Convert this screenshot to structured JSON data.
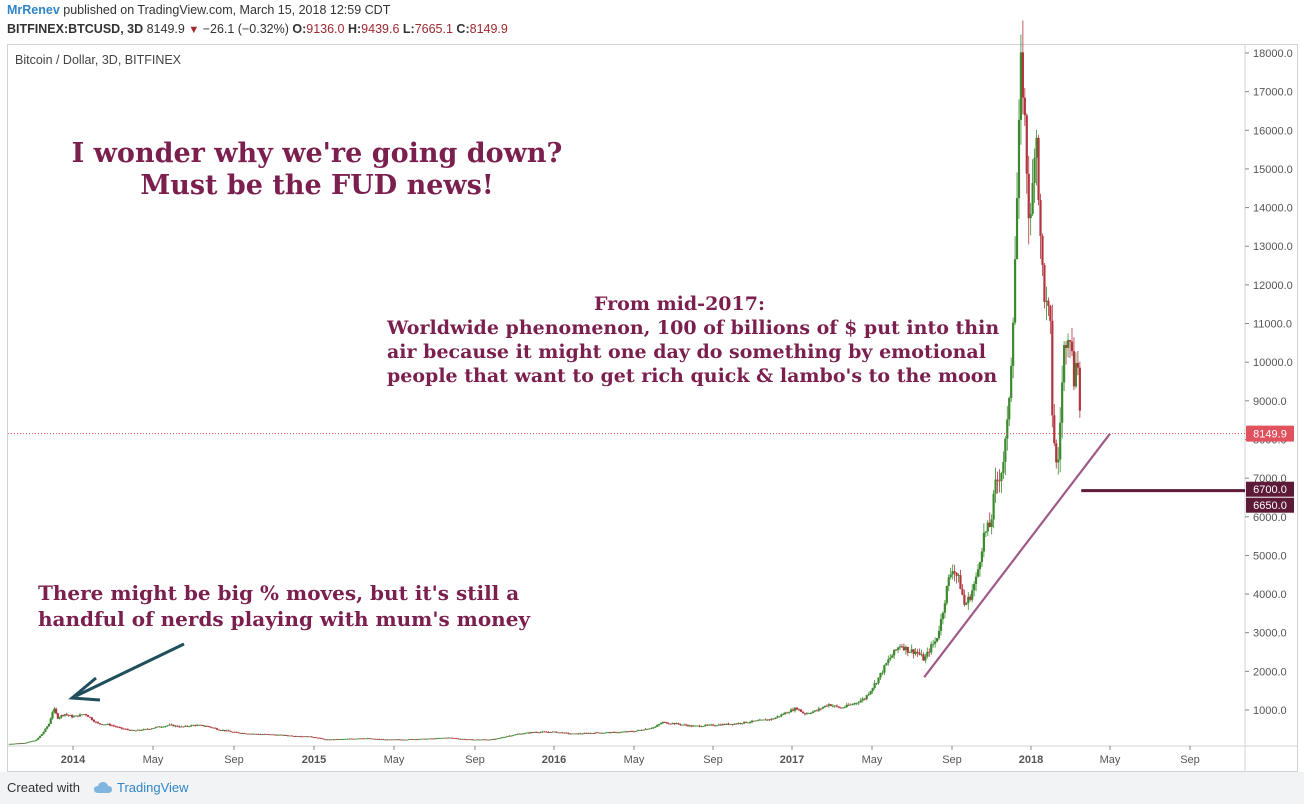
{
  "header": {
    "username": "MrRenev",
    "published_text": "published on TradingView.com, March 15, 2018 12:59 CDT",
    "symbol": "BITFINEX:BTCUSD, 3D",
    "last": "8149.9",
    "change": "−26.1 (−0.32%)",
    "o_label": "O:",
    "o_value": "9136.0",
    "h_label": "H:",
    "h_value": "9439.6",
    "l_label": "L:",
    "l_value": "7665.1",
    "c_label": "C:",
    "c_value": "8149.9"
  },
  "legend": {
    "title": "Bitcoin / Dollar, 3D, BITFINEX"
  },
  "annotations": {
    "top": [
      "I wonder why we're going down?",
      "Must be the FUD news!"
    ],
    "middle": [
      "From mid-2017:",
      "Worldwide phenomenon, 100 of billions of $ put into thin",
      "air because it might one day do something by emotional",
      "people that want to get rich quick & lambo's to the moon"
    ],
    "bottom": [
      "There might be big % moves, but it's still a",
      "handful of nerds playing with mum's money"
    ]
  },
  "price_labels": {
    "last": "8149.9",
    "level_high": "6700.0",
    "level_low": "6650.0"
  },
  "colors": {
    "up": "#3b8a2e",
    "down": "#b3343f",
    "annotation": "#7a1f4e",
    "trendline": "#a05a88",
    "arrow": "#1f4f5c",
    "hline": "#5c1a38",
    "last_price": "#e0525e"
  },
  "footer": {
    "created": "Created with",
    "brand": "TradingView"
  },
  "chart_data": {
    "type": "candlestick",
    "title": "Bitcoin / Dollar, 3D, BITFINEX",
    "y_ticks": [
      1000,
      2000,
      3000,
      4000,
      5000,
      6000,
      7000,
      8000,
      9000,
      10000,
      11000,
      12000,
      13000,
      14000,
      15000,
      16000,
      17000,
      18000
    ],
    "x_ticks": [
      "2014",
      "May",
      "Sep",
      "2015",
      "May",
      "Sep",
      "2016",
      "May",
      "Sep",
      "2017",
      "May",
      "Sep",
      "2018",
      "May",
      "Sep"
    ],
    "x_tick_values": [
      2014.0,
      2014.33,
      2014.667,
      2015.0,
      2015.33,
      2015.667,
      2016.0,
      2016.33,
      2016.667,
      2017.0,
      2017.33,
      2017.667,
      2018.0,
      2018.33,
      2018.667
    ],
    "x_range": [
      2013.7,
      2018.75
    ],
    "ylim": [
      0,
      18400
    ],
    "grid": false,
    "price_series_approx": [
      [
        2013.7,
        120
      ],
      [
        2013.78,
        150
      ],
      [
        2013.83,
        220
      ],
      [
        2013.86,
        400
      ],
      [
        2013.89,
        650
      ],
      [
        2013.91,
        1050
      ],
      [
        2013.93,
        800
      ],
      [
        2013.96,
        900
      ],
      [
        2014.0,
        820
      ],
      [
        2014.05,
        900
      ],
      [
        2014.1,
        650
      ],
      [
        2014.15,
        620
      ],
      [
        2014.2,
        520
      ],
      [
        2014.25,
        460
      ],
      [
        2014.3,
        500
      ],
      [
        2014.35,
        560
      ],
      [
        2014.4,
        610
      ],
      [
        2014.45,
        560
      ],
      [
        2014.5,
        610
      ],
      [
        2014.55,
        590
      ],
      [
        2014.6,
        500
      ],
      [
        2014.67,
        420
      ],
      [
        2014.75,
        380
      ],
      [
        2014.83,
        360
      ],
      [
        2014.92,
        330
      ],
      [
        2015.0,
        300
      ],
      [
        2015.05,
        230
      ],
      [
        2015.1,
        240
      ],
      [
        2015.2,
        270
      ],
      [
        2015.3,
        230
      ],
      [
        2015.4,
        240
      ],
      [
        2015.5,
        260
      ],
      [
        2015.55,
        285
      ],
      [
        2015.65,
        230
      ],
      [
        2015.75,
        240
      ],
      [
        2015.8,
        320
      ],
      [
        2015.85,
        380
      ],
      [
        2015.92,
        430
      ],
      [
        2016.0,
        430
      ],
      [
        2016.08,
        380
      ],
      [
        2016.17,
        410
      ],
      [
        2016.25,
        420
      ],
      [
        2016.33,
        450
      ],
      [
        2016.42,
        560
      ],
      [
        2016.45,
        680
      ],
      [
        2016.5,
        650
      ],
      [
        2016.58,
        580
      ],
      [
        2016.67,
        610
      ],
      [
        2016.75,
        640
      ],
      [
        2016.83,
        700
      ],
      [
        2016.92,
        770
      ],
      [
        2016.98,
        950
      ],
      [
        2017.02,
        1050
      ],
      [
        2017.05,
        900
      ],
      [
        2017.1,
        980
      ],
      [
        2017.15,
        1150
      ],
      [
        2017.2,
        1050
      ],
      [
        2017.25,
        1150
      ],
      [
        2017.3,
        1300
      ],
      [
        2017.35,
        1750
      ],
      [
        2017.4,
        2300
      ],
      [
        2017.45,
        2700
      ],
      [
        2017.48,
        2550
      ],
      [
        2017.52,
        2500
      ],
      [
        2017.55,
        2300
      ],
      [
        2017.58,
        2650
      ],
      [
        2017.6,
        2800
      ],
      [
        2017.62,
        3300
      ],
      [
        2017.65,
        4300
      ],
      [
        2017.67,
        4700
      ],
      [
        2017.7,
        4300
      ],
      [
        2017.72,
        3700
      ],
      [
        2017.74,
        3900
      ],
      [
        2017.77,
        4400
      ],
      [
        2017.8,
        5500
      ],
      [
        2017.83,
        5800
      ],
      [
        2017.85,
        6800
      ],
      [
        2017.88,
        7300
      ],
      [
        2017.9,
        8300
      ],
      [
        2017.92,
        10500
      ],
      [
        2017.94,
        14000
      ],
      [
        2017.96,
        18000
      ],
      [
        2017.975,
        16000
      ],
      [
        2017.99,
        14000
      ],
      [
        2018.0,
        13500
      ],
      [
        2018.02,
        16500
      ],
      [
        2018.04,
        13000
      ],
      [
        2018.06,
        11500
      ],
      [
        2018.08,
        11000
      ],
      [
        2018.09,
        8500
      ],
      [
        2018.11,
        7000
      ],
      [
        2018.12,
        8300
      ],
      [
        2018.14,
        10500
      ],
      [
        2018.16,
        11000
      ],
      [
        2018.18,
        9500
      ],
      [
        2018.19,
        10500
      ],
      [
        2018.2,
        9300
      ],
      [
        2018.21,
        8149.9
      ]
    ],
    "horizontal_levels": [
      6700,
      6650
    ],
    "last_price": 8149.9,
    "trendline": [
      [
        2017.55,
        1850
      ],
      [
        2018.33,
        8150
      ]
    ]
  }
}
